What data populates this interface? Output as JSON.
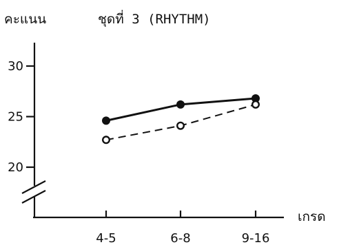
{
  "chart_data": {
    "type": "line",
    "title": "ชุดที่ 3 (RHYTHM)",
    "ylabel": "คะแนน",
    "xlabel": "เกรด",
    "categories": [
      "4-5",
      "6-8",
      "9-16"
    ],
    "yticks": [
      20,
      25,
      30
    ],
    "ylim": [
      20,
      30
    ],
    "axis_break": true,
    "grid": false,
    "series": [
      {
        "style": "solid",
        "marker": "filled-circle",
        "color": "#111111",
        "values": [
          24.6,
          26.2,
          26.8
        ]
      },
      {
        "style": "dashed",
        "marker": "open-circle",
        "color": "#111111",
        "values": [
          22.7,
          24.1,
          26.2
        ]
      }
    ]
  }
}
